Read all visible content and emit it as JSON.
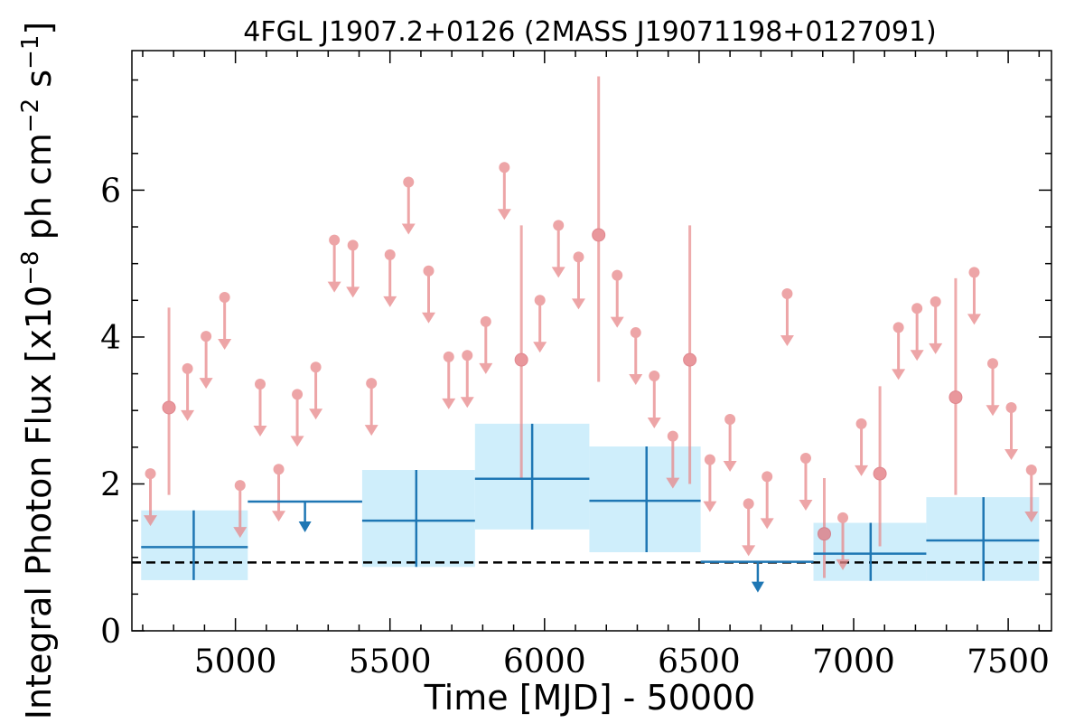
{
  "chart_data": {
    "type": "scatter",
    "title": "4FGL J1907.2+0126 (2MASS J19071198+0127091)",
    "xlabel": "Time [MJD] - 50000",
    "ylabel_parts": {
      "base": "Integral Photon Flux [x10",
      "exp1": "−8",
      "mid": " ph cm",
      "exp2": "−2",
      "s": " s",
      "exp3": "−1",
      "end": "]"
    },
    "xlim": [
      4665,
      7640
    ],
    "ylim": [
      0,
      7.9
    ],
    "x_ticks": [
      5000,
      5500,
      6000,
      6500,
      7000,
      7500
    ],
    "y_ticks": [
      0,
      2,
      4,
      6
    ],
    "reference_line": {
      "y": 0.93,
      "style": "dashed",
      "color": "#000000"
    },
    "colors": {
      "short_bins": "#e8888a",
      "long_bins": "#1f77b4",
      "long_bins_band": "#cfeefb"
    },
    "short_bins": {
      "detections": [
        {
          "x": 4785,
          "y": 3.04,
          "ylo": 1.85,
          "yhi": 4.4
        },
        {
          "x": 5925,
          "y": 3.69,
          "ylo": 2.08,
          "yhi": 5.52
        },
        {
          "x": 6175,
          "y": 5.39,
          "ylo": 3.39,
          "yhi": 7.55
        },
        {
          "x": 6470,
          "y": 3.69,
          "ylo": 2.0,
          "yhi": 5.52
        },
        {
          "x": 6905,
          "y": 1.32,
          "ylo": 0.72,
          "yhi": 2.08
        },
        {
          "x": 7085,
          "y": 2.14,
          "ylo": 1.15,
          "yhi": 3.33
        },
        {
          "x": 7330,
          "y": 3.18,
          "ylo": 1.85,
          "yhi": 4.8
        }
      ],
      "upper_limits": [
        {
          "x": 4725,
          "y": 2.14
        },
        {
          "x": 4845,
          "y": 3.57
        },
        {
          "x": 4905,
          "y": 4.01
        },
        {
          "x": 4965,
          "y": 4.54
        },
        {
          "x": 5015,
          "y": 1.98
        },
        {
          "x": 5080,
          "y": 3.36
        },
        {
          "x": 5140,
          "y": 2.2
        },
        {
          "x": 5200,
          "y": 3.22
        },
        {
          "x": 5260,
          "y": 3.59
        },
        {
          "x": 5320,
          "y": 5.32
        },
        {
          "x": 5380,
          "y": 5.25
        },
        {
          "x": 5440,
          "y": 3.37
        },
        {
          "x": 5500,
          "y": 5.12
        },
        {
          "x": 5560,
          "y": 6.11
        },
        {
          "x": 5625,
          "y": 4.9
        },
        {
          "x": 5690,
          "y": 3.73
        },
        {
          "x": 5750,
          "y": 3.75
        },
        {
          "x": 5810,
          "y": 4.21
        },
        {
          "x": 5870,
          "y": 6.31
        },
        {
          "x": 5985,
          "y": 4.5
        },
        {
          "x": 6045,
          "y": 5.52
        },
        {
          "x": 6110,
          "y": 5.09
        },
        {
          "x": 6235,
          "y": 4.84
        },
        {
          "x": 6295,
          "y": 4.06
        },
        {
          "x": 6355,
          "y": 3.47
        },
        {
          "x": 6415,
          "y": 2.65
        },
        {
          "x": 6535,
          "y": 2.33
        },
        {
          "x": 6600,
          "y": 2.88
        },
        {
          "x": 6660,
          "y": 1.73
        },
        {
          "x": 6720,
          "y": 2.1
        },
        {
          "x": 6785,
          "y": 4.59
        },
        {
          "x": 6845,
          "y": 2.35
        },
        {
          "x": 6965,
          "y": 1.54
        },
        {
          "x": 7025,
          "y": 2.82
        },
        {
          "x": 7145,
          "y": 4.13
        },
        {
          "x": 7205,
          "y": 4.39
        },
        {
          "x": 7265,
          "y": 4.48
        },
        {
          "x": 7390,
          "y": 4.88
        },
        {
          "x": 7450,
          "y": 3.64
        },
        {
          "x": 7510,
          "y": 3.04
        },
        {
          "x": 7575,
          "y": 2.19
        }
      ]
    },
    "long_bins": {
      "detections": [
        {
          "x": 4865,
          "xlo": 4695,
          "xhi": 5040,
          "y": 1.14,
          "ylo": 0.69,
          "yhi": 1.64
        },
        {
          "x": 5585,
          "xlo": 5410,
          "xhi": 5775,
          "y": 1.5,
          "ylo": 0.87,
          "yhi": 2.19
        },
        {
          "x": 5960,
          "xlo": 5775,
          "xhi": 6145,
          "y": 2.07,
          "ylo": 1.38,
          "yhi": 2.82
        },
        {
          "x": 6330,
          "xlo": 6145,
          "xhi": 6505,
          "y": 1.77,
          "ylo": 1.07,
          "yhi": 2.51
        },
        {
          "x": 7055,
          "xlo": 6870,
          "xhi": 7235,
          "y": 1.05,
          "ylo": 0.68,
          "yhi": 1.47
        },
        {
          "x": 7420,
          "xlo": 7235,
          "xhi": 7600,
          "y": 1.23,
          "ylo": 0.68,
          "yhi": 1.82
        }
      ],
      "upper_limits": [
        {
          "x": 5225,
          "xlo": 5040,
          "xhi": 5410,
          "y": 1.76
        },
        {
          "x": 6690,
          "xlo": 6505,
          "xhi": 6870,
          "y": 0.94
        }
      ]
    }
  }
}
